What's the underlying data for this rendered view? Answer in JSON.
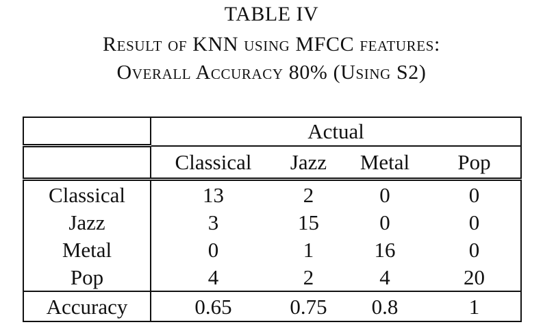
{
  "caption": {
    "title": "TABLE IV",
    "line1": "Result of KNN using MFCC features:",
    "line2": "Overall Accuracy 80% (Using S2)"
  },
  "table": {
    "header_group": "Actual",
    "columns": [
      "Classical",
      "Jazz",
      "Metal",
      "Pop"
    ],
    "rows": [
      {
        "label": "Classical",
        "values": [
          "13",
          "2",
          "0",
          "0"
        ]
      },
      {
        "label": "Jazz",
        "values": [
          "3",
          "15",
          "0",
          "0"
        ]
      },
      {
        "label": "Metal",
        "values": [
          "0",
          "1",
          "16",
          "0"
        ]
      },
      {
        "label": "Pop",
        "values": [
          "4",
          "2",
          "4",
          "20"
        ]
      }
    ],
    "accuracy": {
      "label": "Accuracy",
      "values": [
        "0.65",
        "0.75",
        "0.8",
        "1"
      ]
    }
  }
}
